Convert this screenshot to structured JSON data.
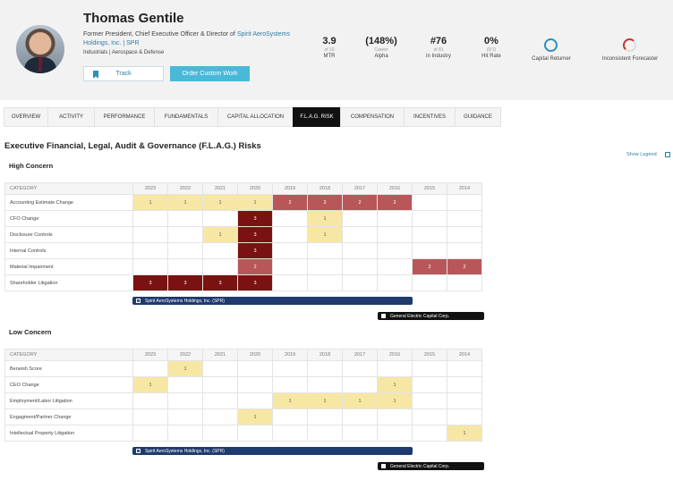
{
  "profile": {
    "name": "Thomas Gentile",
    "title_prefix": "Former President, Chief Executive Officer & Director of ",
    "company_link": "Spirit AeroSystems Holdings, Inc. | SPR",
    "industry": "Industrials | Aerospace & Defense"
  },
  "actions": {
    "track_label": "Track",
    "order_label": "Order Custom Work"
  },
  "stats": [
    {
      "value": "3.9",
      "sub": "of 10",
      "label": "MTR"
    },
    {
      "value": "(148%)",
      "sub": "Career",
      "label": "Alpha"
    },
    {
      "value": "#76",
      "sub": "of 81",
      "label": "in Industry"
    },
    {
      "value": "0%",
      "sub": "(0/1)",
      "label": "Hit Rate"
    }
  ],
  "badges": [
    {
      "label": "Capital Returner",
      "color": "#2d8fb8",
      "icon": "full-ring-icon"
    },
    {
      "label": "Inconsistent Forecaster",
      "color": "#c0392b",
      "icon": "partial-ring-icon"
    }
  ],
  "tabs": [
    "OVERVIEW",
    "ACTIVITY",
    "PERFORMANCE",
    "FUNDAMENTALS",
    "CAPITAL ALLOCATION",
    "F.L.A.G. RISK",
    "COMPENSATION",
    "INCENTIVES",
    "GUIDANCE"
  ],
  "active_tab": "F.L.A.G. RISK",
  "section_title": "Executive Financial, Legal, Audit & Governance (F.L.A.G.) Risks",
  "show_legend": "Show Legend",
  "colors": {
    "level1": "#f7e7a5",
    "level2": "#b9565a",
    "level3": "#7a1212",
    "spirit_bar": "#1f3a6e",
    "ge_bar": "#111111"
  },
  "years": [
    "2023",
    "2022",
    "2021",
    "2020",
    "2019",
    "2018",
    "2017",
    "2016",
    "2015",
    "2014"
  ],
  "category_header": "CATEGORY",
  "high": {
    "title": "High Concern",
    "rows": [
      {
        "label": "Accounting Estimate Change",
        "cells": [
          1,
          1,
          1,
          1,
          2,
          2,
          2,
          2,
          null,
          null
        ]
      },
      {
        "label": "CFO Change",
        "cells": [
          null,
          null,
          null,
          3,
          null,
          1,
          null,
          null,
          null,
          null
        ]
      },
      {
        "label": "Disclosure Controls",
        "cells": [
          null,
          null,
          1,
          3,
          null,
          1,
          null,
          null,
          null,
          null
        ]
      },
      {
        "label": "Internal Controls",
        "cells": [
          null,
          null,
          null,
          3,
          null,
          null,
          null,
          null,
          null,
          null
        ]
      },
      {
        "label": "Material Impairment",
        "cells": [
          null,
          null,
          null,
          2,
          null,
          null,
          null,
          null,
          2,
          2
        ]
      },
      {
        "label": "Shareholder Litigation",
        "cells": [
          3,
          3,
          3,
          3,
          null,
          null,
          null,
          null,
          null,
          null
        ]
      }
    ]
  },
  "low": {
    "title": "Low Concern",
    "rows": [
      {
        "label": "Beneish Score",
        "cells": [
          null,
          1,
          null,
          null,
          null,
          null,
          null,
          null,
          null,
          null
        ]
      },
      {
        "label": "CEO Change",
        "cells": [
          1,
          null,
          null,
          null,
          null,
          null,
          null,
          1,
          null,
          null
        ]
      },
      {
        "label": "Employment/Labor Litigation",
        "cells": [
          null,
          null,
          null,
          null,
          1,
          1,
          1,
          1,
          null,
          null
        ]
      },
      {
        "label": "Engagment/Partner Change",
        "cells": [
          null,
          null,
          null,
          1,
          null,
          null,
          null,
          null,
          null,
          null
        ]
      },
      {
        "label": "Intellectual Property Litigation",
        "cells": [
          null,
          null,
          null,
          null,
          null,
          null,
          null,
          null,
          null,
          1
        ]
      }
    ]
  },
  "tenures": {
    "spirit": "Spirit AeroSystems Holdings, Inc. (SPR)",
    "ge": "General Electric Capital Corp."
  }
}
